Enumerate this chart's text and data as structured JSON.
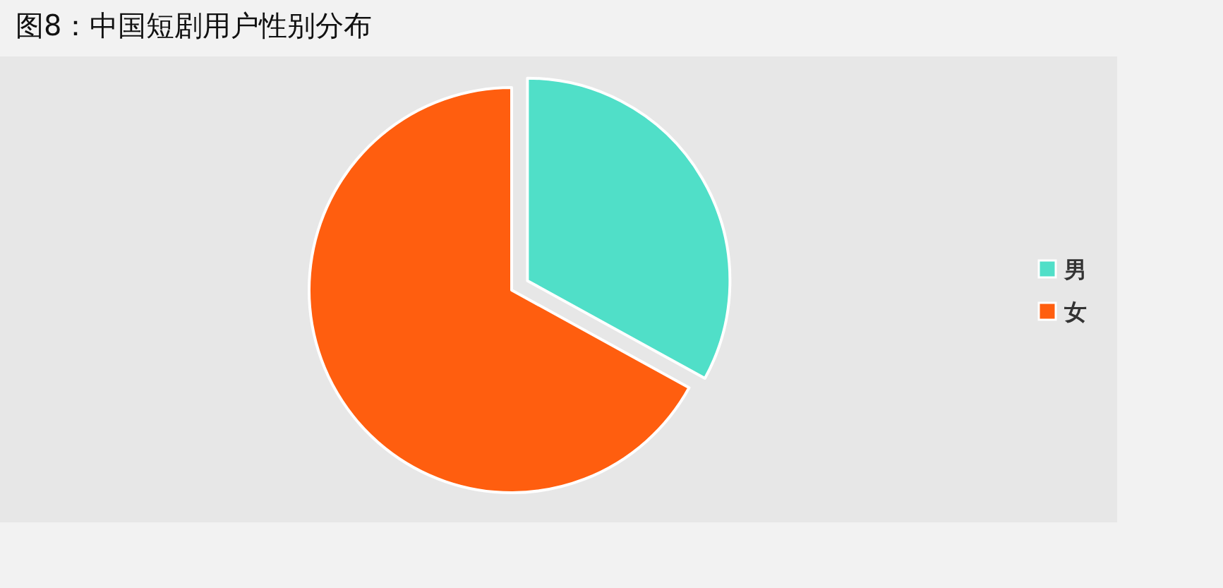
{
  "chart_data": {
    "type": "pie",
    "title": "图8：中国短剧用户性别分布",
    "categories": [
      "男",
      "女"
    ],
    "values": [
      33,
      67
    ],
    "colors": [
      "#50dfc8",
      "#ff5e0f"
    ],
    "legend": "right"
  }
}
